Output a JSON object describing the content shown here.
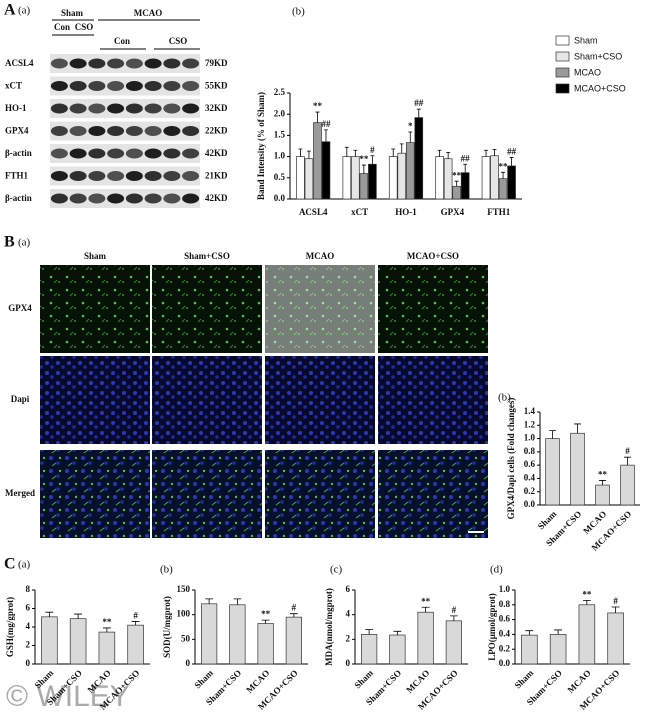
{
  "panel_labels": {
    "A": "A",
    "A_a": "(a)",
    "A_b": "(b)",
    "B": "B",
    "B_a": "(a)",
    "B_b": "(b)",
    "C": "C",
    "C_a": "(a)",
    "C_b": "(b)",
    "C_c": "(c)",
    "C_d": "(d)"
  },
  "blot": {
    "groups": [
      "Sham",
      "MCAO"
    ],
    "lanes": [
      "Con",
      "CSO",
      "Con",
      "CSO"
    ],
    "rows": [
      {
        "label": "ACSL4",
        "size": "79KD"
      },
      {
        "label": "xCT",
        "size": "55KD"
      },
      {
        "label": "HO-1",
        "size": "32KD"
      },
      {
        "label": "GPX4",
        "size": "22KD"
      },
      {
        "label": "β-actin",
        "size": "42KD"
      },
      {
        "label": "FTH1",
        "size": "21KD"
      },
      {
        "label": "β-actin",
        "size": "42KD"
      }
    ]
  },
  "microscopy": {
    "columns": [
      "Sham",
      "Sham+CSO",
      "MCAO",
      "MCAO+CSO"
    ],
    "rows": [
      "GPX4",
      "Dapi",
      "Merged"
    ]
  },
  "chart_data": [
    {
      "type": "bar",
      "ylabel": "Band Intensity (% of Sham)",
      "categories": [
        "ACSL4",
        "xCT",
        "HO-1",
        "GPX4",
        "FTH1"
      ],
      "ylim": [
        0,
        2.5
      ],
      "yticks": [
        {
          "value": 0,
          "label": "0.0"
        },
        0.5,
        {
          "value": 1,
          "label": "1.0"
        },
        1.5,
        {
          "value": 2,
          "label": "2.0"
        },
        2.5
      ],
      "legend": "top-right",
      "series": [
        {
          "name": "Sham",
          "color": "#ffffff",
          "values": [
            1.0,
            1.0,
            1.0,
            1.0,
            1.0
          ],
          "errors": [
            0.18,
            0.22,
            0.18,
            0.15,
            0.15
          ],
          "annotations": [
            null,
            null,
            null,
            null,
            null
          ]
        },
        {
          "name": "Sham+CSO",
          "color": "#e6e6e6",
          "values": [
            0.95,
            1.0,
            1.08,
            0.95,
            1.02
          ],
          "errors": [
            0.18,
            0.15,
            0.22,
            0.15,
            0.15
          ],
          "annotations": [
            null,
            null,
            null,
            null,
            null
          ]
        },
        {
          "name": "MCAO",
          "color": "#9a9a9a",
          "values": [
            1.8,
            0.6,
            1.33,
            0.3,
            0.48
          ],
          "errors": [
            0.25,
            0.2,
            0.25,
            0.12,
            0.15
          ],
          "annotations": [
            "**",
            "**",
            "*",
            "**",
            "**"
          ]
        },
        {
          "name": "MCAO+CSO",
          "color": "#000000",
          "values": [
            1.35,
            0.82,
            1.92,
            0.62,
            0.78
          ],
          "errors": [
            0.28,
            0.2,
            0.2,
            0.2,
            0.2
          ],
          "annotations": [
            "##",
            "#",
            "##",
            "##",
            "##"
          ]
        }
      ]
    },
    {
      "type": "bar",
      "ylabel": "GPX4/Dapi cells (Fold changes)",
      "categories": [
        "Sham",
        "Sham+CSO",
        "MCAO",
        "MCAO+CSO"
      ],
      "color": "#d9d9d9",
      "values": [
        1.0,
        1.08,
        0.3,
        0.6
      ],
      "errors": [
        0.12,
        0.14,
        0.07,
        0.12
      ],
      "annotations": [
        null,
        null,
        "**",
        "#"
      ],
      "ylim": [
        0,
        1.4
      ],
      "yticks": [
        {
          "value": 0,
          "label": "0.0"
        },
        0.2,
        0.4,
        0.6,
        0.8,
        {
          "value": 1,
          "label": "1.0"
        },
        1.2,
        1.4
      ]
    },
    {
      "type": "bar",
      "ylabel": "GSH(mg/gprot)",
      "categories": [
        "Sham",
        "Sham+CSO",
        "MCAO",
        "MCAO+CSO"
      ],
      "color": "#d9d9d9",
      "values": [
        5.1,
        4.9,
        3.45,
        4.2
      ],
      "errors": [
        0.5,
        0.5,
        0.45,
        0.4
      ],
      "annotations": [
        null,
        null,
        "**",
        "#"
      ],
      "ylim": [
        0,
        8
      ],
      "yticks": [
        0,
        2,
        4,
        6,
        8
      ]
    },
    {
      "type": "bar",
      "ylabel": "SOD(U/mgprot)",
      "categories": [
        "Sham",
        "Sham+CSO",
        "MCAO",
        "MCAO+CSO"
      ],
      "color": "#d9d9d9",
      "values": [
        122,
        120,
        82,
        95
      ],
      "errors": [
        10,
        12,
        7,
        7
      ],
      "annotations": [
        null,
        null,
        "**",
        "#"
      ],
      "ylim": [
        0,
        150
      ],
      "yticks": [
        0,
        50,
        100,
        150
      ]
    },
    {
      "type": "bar",
      "ylabel": "MDA(nmol/mgprot)",
      "categories": [
        "Sham",
        "Sham+CSO",
        "MCAO",
        "MCAO+CSO"
      ],
      "color": "#d9d9d9",
      "values": [
        2.4,
        2.35,
        4.2,
        3.5
      ],
      "errors": [
        0.4,
        0.3,
        0.4,
        0.4
      ],
      "annotations": [
        null,
        null,
        "**",
        "#"
      ],
      "ylim": [
        0,
        6
      ],
      "yticks": [
        0,
        2,
        4,
        6
      ]
    },
    {
      "type": "bar",
      "ylabel": "LPO(μmol/gprot)",
      "categories": [
        "Sham",
        "Sham+CSO",
        "MCAO",
        "MCAO+CSO"
      ],
      "color": "#d9d9d9",
      "values": [
        0.39,
        0.4,
        0.8,
        0.69
      ],
      "errors": [
        0.06,
        0.06,
        0.06,
        0.08
      ],
      "annotations": [
        null,
        null,
        "**",
        "#"
      ],
      "ylim": [
        0,
        1
      ],
      "yticks": [
        {
          "value": 0,
          "label": "0.0"
        },
        0.2,
        0.4,
        0.6,
        0.8,
        {
          "value": 1,
          "label": "1.0"
        }
      ]
    }
  ],
  "watermark": "© WILEY"
}
